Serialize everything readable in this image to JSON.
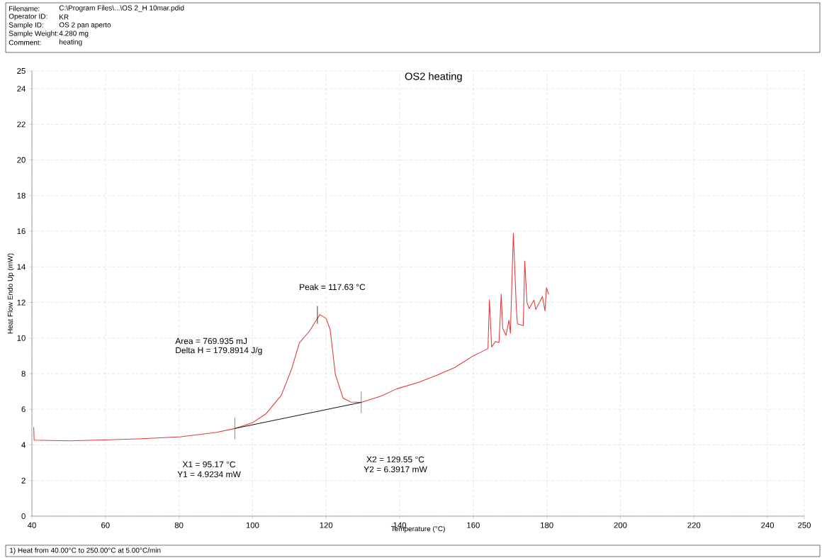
{
  "chart_data": {
    "type": "line",
    "title": "OS2 heating",
    "xlabel": "Temperature (°C)",
    "ylabel": "Heat Flow Endo Up (mW)",
    "x": [
      40.5,
      40.6,
      50,
      59.5,
      70,
      80.5,
      90,
      95.17,
      100,
      103.6,
      107.8,
      110.6,
      112.7,
      115.5,
      117,
      118.3,
      120,
      121.1,
      122.5,
      124.6,
      126.7,
      129.55,
      135,
      139.2,
      145,
      150,
      155,
      160,
      162,
      164,
      164.4,
      165,
      166,
      167,
      167.6,
      168,
      168.9,
      169.7,
      170.1,
      170.9,
      171.7,
      172,
      173.6,
      174.0,
      174.6,
      175.2,
      176.5,
      177.0,
      178.8,
      179.5,
      179.9,
      180.5
    ],
    "series": [
      {
        "color": "#e03a3a",
        "values": [
          5.0,
          4.27,
          4.23,
          4.28,
          4.35,
          4.46,
          4.7,
          4.92,
          5.25,
          5.74,
          6.78,
          8.25,
          9.72,
          10.4,
          10.9,
          11.32,
          11.1,
          10.47,
          7.96,
          6.63,
          6.41,
          6.39,
          6.75,
          7.15,
          7.5,
          7.9,
          8.35,
          9.0,
          9.2,
          9.41,
          12.15,
          9.5,
          9.8,
          9.75,
          12.46,
          10.55,
          10.15,
          11.0,
          10.27,
          15.88,
          11.74,
          10.8,
          10.7,
          14.32,
          12.0,
          11.66,
          12.13,
          11.6,
          12.33,
          11.53,
          12.82,
          12.46
        ]
      },
      {
        "color": "#1a1a1a",
        "x": [
          95.17,
          129.55
        ],
        "values": [
          4.9234,
          6.3917
        ],
        "errors": [
          0.6,
          0.6
        ]
      },
      {
        "color": "#333333",
        "x": [
          117.63,
          117.63
        ],
        "values": [
          10.8,
          11.8
        ]
      }
    ],
    "xlim": [
      40,
      250
    ],
    "ylim": [
      0,
      25
    ],
    "xticks": [
      40,
      60,
      80,
      100,
      120,
      140,
      160,
      180,
      200,
      220,
      240,
      250
    ],
    "yticks": [
      0,
      2,
      4,
      6,
      8,
      10,
      12,
      14,
      16,
      18,
      20,
      22,
      24,
      25
    ],
    "grid": true,
    "marker": "none",
    "line_style": "solid",
    "annotations": [
      "Filename:",
      "C:\\Program Files\\...\\OS 2_H 10mar.pdid",
      "Operator ID:",
      "KR",
      "Sample ID:",
      "OS 2  pan aperto",
      "Sample Weight:",
      "4.280 mg",
      "Comment:",
      "heating",
      "1)  Heat from 40.00°C to 250.00°C at 5.00°C/min",
      "Area = 769.935 mJ",
      "Delta H = 179.8914 J/g",
      {
        "text": "Peak = 117.63 °C",
        "x": 117.63,
        "y": 11.32
      },
      "X1 = 95.17 °C",
      "Y1 = 4.9234 mW",
      "X2 = 129.55 °C",
      "Y2 = 6.3917 mW"
    ]
  }
}
